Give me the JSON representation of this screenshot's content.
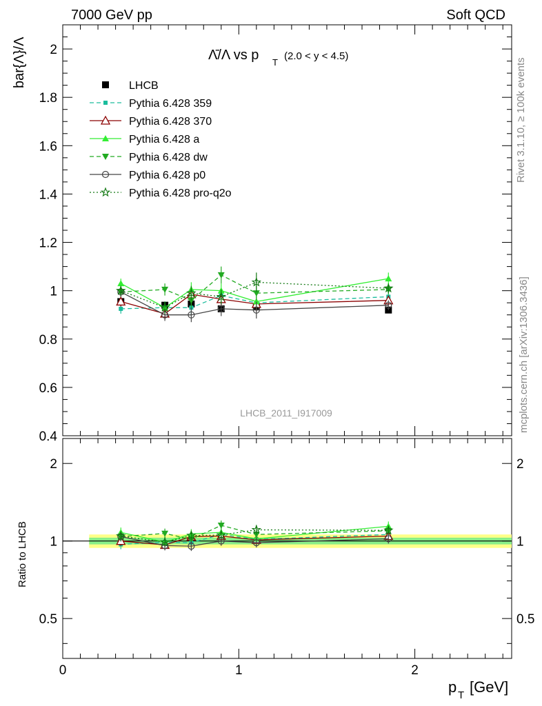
{
  "header": {
    "left": "7000 GeV pp",
    "right": "Soft QCD"
  },
  "side": {
    "rivet": "Rivet 3.1.10, ≥ 100k events",
    "mcplots": "mcplots.cern.ch [arXiv:1306.3436]"
  },
  "watermark": "LHCB_2011_I917009",
  "title": {
    "main": "Λ̄/Λ vs p",
    "sub": "T",
    "range": "(2.0 < y < 4.5)"
  },
  "colors": {
    "lhcb": "#000000",
    "p359": "#1abc9c",
    "p370": "#8b0000",
    "a": "#33ee33",
    "dw": "#22aa22",
    "p0": "#444444",
    "proq2o": "#117711",
    "band_yellow": "#ffff88",
    "band_green": "#88ee88"
  },
  "chart_data": [
    {
      "type": "line",
      "panel": "main",
      "ylabel": "bar{Λ}/Λ",
      "xlim": [
        0,
        2.55
      ],
      "ylim": [
        0.4,
        2.1
      ],
      "yticks": [
        "0.4",
        "0.6",
        "0.8",
        "1",
        "1.2",
        "1.4",
        "1.6",
        "1.8",
        "2"
      ],
      "legend_position": "top-left",
      "x": [
        0.33,
        0.58,
        0.73,
        0.9,
        1.1,
        1.85
      ],
      "series": [
        {
          "name": "LHCB",
          "marker": "square",
          "values": [
            0.955,
            0.94,
            0.945,
            0.925,
            0.935,
            0.92
          ],
          "errors": [
            0.015,
            0.012,
            0.012,
            0.012,
            0.012,
            0.012
          ]
        },
        {
          "name": "Pythia 6.428 359",
          "marker": "square-small",
          "dash": "dashed",
          "values": [
            0.925,
            0.93,
            0.93,
            0.98,
            0.95,
            0.975
          ],
          "errors": [
            0.02,
            0.025,
            0.03,
            0.03,
            0.03,
            0.02
          ]
        },
        {
          "name": "Pythia 6.428 370",
          "marker": "triangle-open",
          "values": [
            0.955,
            0.905,
            0.985,
            0.965,
            0.945,
            0.96
          ],
          "errors": [
            0.02,
            0.025,
            0.03,
            0.03,
            0.03,
            0.02
          ]
        },
        {
          "name": "Pythia 6.428 a",
          "marker": "triangle",
          "values": [
            1.03,
            0.93,
            1.005,
            1.0,
            0.955,
            1.05
          ],
          "errors": [
            0.02,
            0.025,
            0.03,
            0.03,
            0.03,
            0.025
          ]
        },
        {
          "name": "Pythia 6.428 dw",
          "marker": "triangle-down",
          "dash": "dashed",
          "values": [
            0.995,
            1.005,
            0.96,
            1.065,
            0.99,
            1.005
          ],
          "errors": [
            0.02,
            0.025,
            0.03,
            0.035,
            0.03,
            0.02
          ]
        },
        {
          "name": "Pythia 6.428 p0",
          "marker": "circle-open",
          "values": [
            0.995,
            0.9,
            0.9,
            0.925,
            0.92,
            0.94
          ],
          "errors": [
            0.02,
            0.025,
            0.03,
            0.03,
            0.035,
            0.02
          ]
        },
        {
          "name": "Pythia 6.428 pro-q2o",
          "marker": "star",
          "dash": "dotted",
          "values": [
            1.0,
            0.93,
            0.99,
            0.975,
            1.035,
            1.01
          ],
          "errors": [
            0.02,
            0.025,
            0.03,
            0.03,
            0.04,
            0.02
          ]
        }
      ]
    },
    {
      "type": "line",
      "panel": "ratio",
      "xlabel": "p_T [GeV]",
      "ylabel": "Ratio to LHCB",
      "xlim": [
        0,
        2.55
      ],
      "ylim": [
        0.35,
        2.5
      ],
      "yscale": "log",
      "xticks": [
        "0",
        "1",
        "2"
      ],
      "yticks_left": [
        "0.5",
        "1",
        "2"
      ],
      "yticks_right": [
        "0.5",
        "1",
        "2"
      ],
      "band": {
        "x_range": [
          0.15,
          2.55
        ],
        "yellow": [
          0.94,
          1.06
        ],
        "green": [
          0.97,
          1.03
        ]
      },
      "x": [
        0.33,
        0.58,
        0.73,
        0.9,
        1.1,
        1.85
      ],
      "series": [
        {
          "name": "Pythia 6.428 359",
          "values": [
            0.97,
            0.99,
            0.985,
            1.06,
            1.015,
            1.06
          ]
        },
        {
          "name": "Pythia 6.428 370",
          "values": [
            1.0,
            0.965,
            1.04,
            1.045,
            1.01,
            1.045
          ]
        },
        {
          "name": "Pythia 6.428 a",
          "values": [
            1.08,
            0.99,
            1.065,
            1.08,
            1.02,
            1.14
          ]
        },
        {
          "name": "Pythia 6.428 dw",
          "values": [
            1.04,
            1.07,
            1.015,
            1.15,
            1.06,
            1.095
          ]
        },
        {
          "name": "Pythia 6.428 p0",
          "values": [
            1.04,
            0.96,
            0.955,
            1.0,
            0.985,
            1.02
          ]
        },
        {
          "name": "Pythia 6.428 pro-q2o",
          "values": [
            1.045,
            0.99,
            1.05,
            1.055,
            1.105,
            1.1
          ]
        }
      ]
    }
  ]
}
